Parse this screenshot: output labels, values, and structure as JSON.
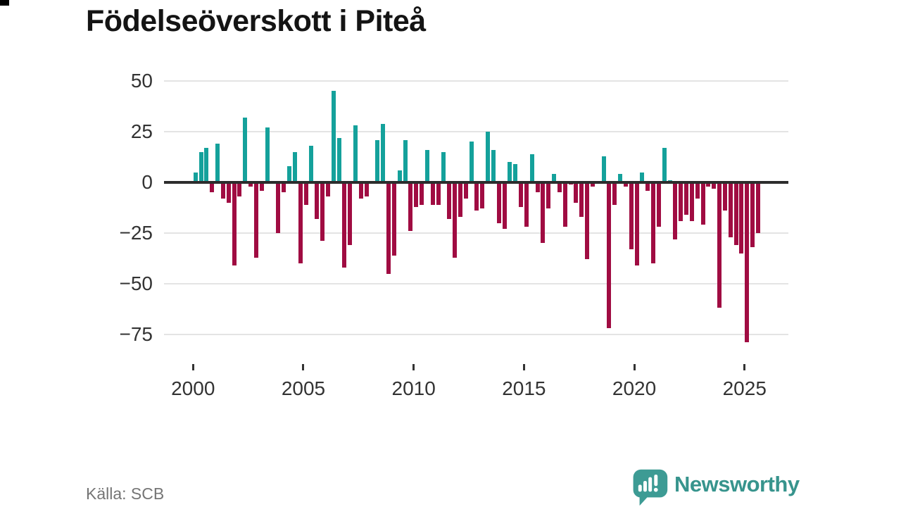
{
  "header": {
    "title": "Födelseöverskott i Piteå"
  },
  "footer": {
    "source": "Källa: SCB",
    "brand": "Newsworthy"
  },
  "colors": {
    "positive": "#14a19b",
    "negative": "#a00c42",
    "axis": "#2d2d2d",
    "gridline": "#e4e4e4",
    "tick_label": "#333333",
    "source_text": "#757575",
    "brand_teal": "#37948d"
  },
  "chart_data": {
    "type": "bar",
    "title": "Födelseöverskott i Piteå",
    "period": "quarterly",
    "start": "2000-Q1",
    "end": "2025-Q3",
    "grid": true,
    "legend": false,
    "ylim": [
      -85,
      55
    ],
    "y_ticks": [
      50,
      25,
      0,
      -25,
      -50,
      -75
    ],
    "y_tick_labels": [
      "50",
      "25",
      "0",
      "−25",
      "−50",
      "−75"
    ],
    "x_ticks": [
      2000,
      2005,
      2010,
      2015,
      2020,
      2025
    ],
    "x_tick_labels": [
      "2000",
      "2005",
      "2010",
      "2015",
      "2020",
      "2025"
    ],
    "series": [
      {
        "name": "Födelseöverskott",
        "values": [
          5,
          15,
          17,
          -5,
          19,
          -8,
          -10,
          -41,
          -7,
          32,
          -2,
          -37,
          -4,
          27,
          0,
          -25,
          -5,
          8,
          15,
          -40,
          -11,
          18,
          -18,
          -29,
          -7,
          45,
          22,
          -42,
          -31,
          28,
          -8,
          -7,
          0,
          21,
          29,
          -45,
          -36,
          6,
          21,
          -24,
          -12,
          -11,
          16,
          -11,
          -11,
          15,
          -18,
          -37,
          -17,
          -8,
          20,
          -14,
          -13,
          25,
          16,
          -20,
          -23,
          10,
          9,
          -12,
          -22,
          14,
          -5,
          -30,
          -13,
          4,
          -5,
          -22,
          -1,
          -10,
          -17,
          -38,
          -2,
          0,
          13,
          -72,
          -11,
          4,
          -2,
          -33,
          -41,
          5,
          -4,
          -40,
          -22,
          17,
          1,
          -28,
          -19,
          -16,
          -19,
          -8,
          -21,
          -2,
          -3,
          -62,
          -14,
          -27,
          -31,
          -35,
          -79,
          -32,
          -25
        ]
      }
    ]
  }
}
